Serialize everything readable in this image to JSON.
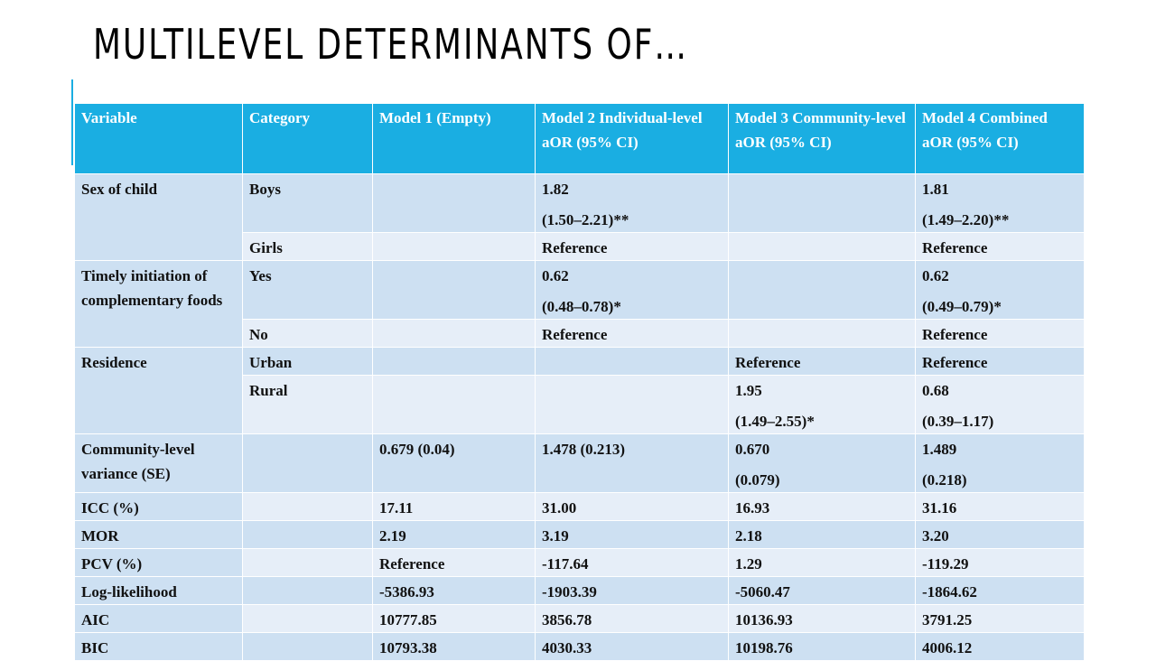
{
  "slide": {
    "title": "MULTILEVEL DETERMINANTS OF…"
  },
  "table": {
    "headers": [
      "Variable",
      "Category",
      "Model 1 (Empty)",
      "Model 2 Individual-level aOR (95% CI)",
      "Model 3 Community-level aOR (95% CI)",
      "Model 4 Combined aOR (95% CI)"
    ],
    "sex": {
      "label": "Sex of child",
      "boys": {
        "category": "Boys",
        "m2_a": "1.82",
        "m2_b": "(1.50–2.21)**",
        "m4_a": "1.81",
        "m4_b": "(1.49–2.20)**"
      },
      "girls": {
        "category": "Girls",
        "m2": "Reference",
        "m4": "Reference"
      }
    },
    "timely": {
      "label": "Timely initiation of complementary foods",
      "yes": {
        "category": "Yes",
        "m2_a": "0.62",
        "m2_b": "(0.48–0.78)*",
        "m4_a": "0.62",
        "m4_b": "(0.49–0.79)*"
      },
      "no": {
        "category": "No",
        "m2": "Reference",
        "m4": "Reference"
      }
    },
    "residence": {
      "label": "Residence",
      "urban": {
        "category": "Urban",
        "m3": "Reference",
        "m4": "Reference"
      },
      "rural": {
        "category": "Rural",
        "m3_a": "1.95",
        "m3_b": "(1.49–2.55)*",
        "m4_a": "0.68",
        "m4_b": "(0.39–1.17)"
      }
    },
    "variance": {
      "label": "Community-level variance (SE)",
      "m1": "0.679 (0.04)",
      "m2": "1.478 (0.213)",
      "m3_a": "0.670",
      "m3_b": "(0.079)",
      "m4_a": "1.489",
      "m4_b": "(0.218)"
    },
    "stats": [
      {
        "label": "ICC (%)",
        "m1": "17.11",
        "m2": "31.00",
        "m3": "16.93",
        "m4": "31.16"
      },
      {
        "label": "MOR",
        "m1": "2.19",
        "m2": "3.19",
        "m3": "2.18",
        "m4": "3.20"
      },
      {
        "label": "PCV (%)",
        "m1": "Reference",
        "m2": "-117.64",
        "m3": "1.29",
        "m4": "-119.29"
      },
      {
        "label": "Log-likelihood",
        "m1": "-5386.93",
        "m2": "-1903.39",
        "m3": "-5060.47",
        "m4": "-1864.62"
      },
      {
        "label": "AIC",
        "m1": "10777.85",
        "m2": "3856.78",
        "m3": "10136.93",
        "m4": "3791.25"
      },
      {
        "label": "BIC",
        "m1": "10793.38",
        "m2": "4030.33",
        "m3": "10198.76",
        "m4": "4006.12"
      }
    ]
  },
  "colors": {
    "header_bg": "#1aaee2",
    "row_dark": "#cde0f2",
    "row_light": "#e6eef8"
  }
}
